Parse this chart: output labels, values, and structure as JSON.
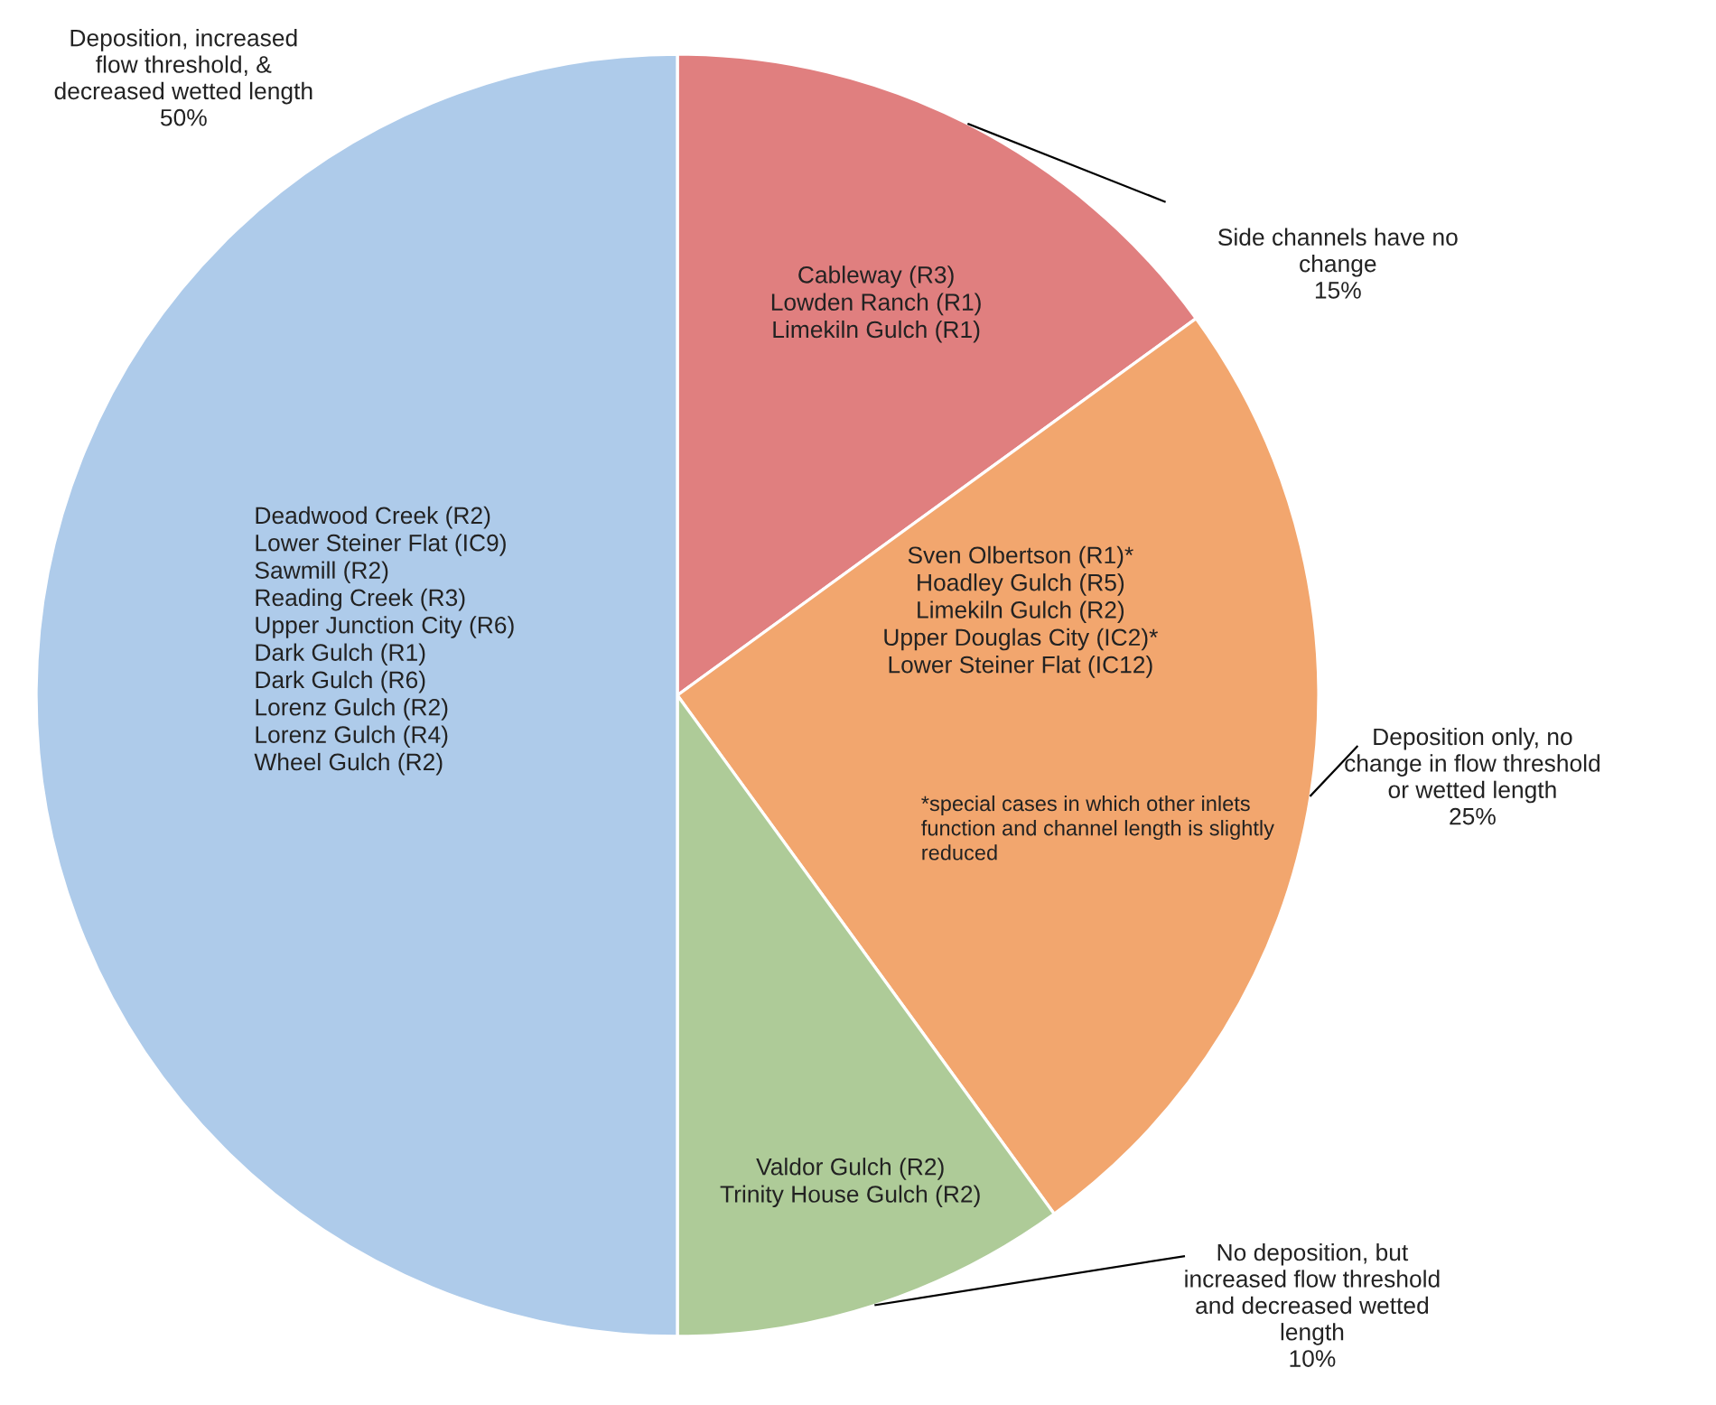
{
  "chart_data": {
    "type": "pie",
    "categories": [
      "Side channels have no\nchange",
      "Deposition only, no\nchange in flow threshold\nor wetted length",
      "No deposition, but\nincreased flow threshold\nand decreased wetted\nlength",
      "Deposition, increased\nflow threshold, &\ndecreased wetted length"
    ],
    "values": [
      15,
      25,
      10,
      50
    ],
    "value_labels": [
      "15%",
      "25%",
      "10%",
      "50%"
    ],
    "colors": [
      "#e07f7f",
      "#f2a66e",
      "#aecb98",
      "#aecbea"
    ],
    "annotations": [
      "Cableway (R3)\nLowden Ranch (R1)\nLimekiln Gulch (R1)",
      "Sven Olbertson (R1)*\nHoadley Gulch (R5)\nLimekiln Gulch (R2)\nUpper Douglas City (IC2)*\nLower Steiner Flat (IC12)",
      "*special cases in which other inlets\nfunction and channel length is slightly\nreduced",
      "Valdor Gulch (R2)\nTrinity House Gulch (R2)",
      "Deadwood Creek (R2)\nLower Steiner Flat (IC9)\nSawmill (R2)\nReading Creek (R3)\nUpper Junction City (R6)\nDark Gulch (R1)\nDark Gulch (R6)\nLorenz Gulch (R2)\nLorenz Gulch (R4)\nWheel Gulch (R2)"
    ],
    "legend": false
  }
}
